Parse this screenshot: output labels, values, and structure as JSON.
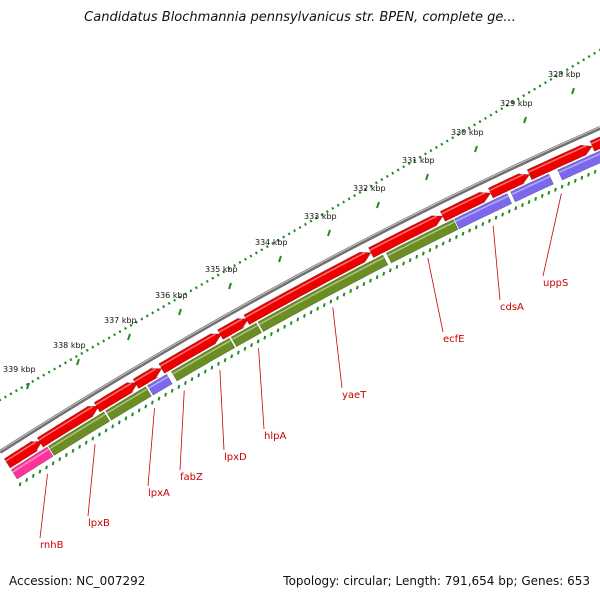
{
  "header": {
    "title": "Candidatus Blochmannia pennsylvanicus str. BPEN, complete ge..."
  },
  "footer": {
    "accession": "Accession: NC_007292",
    "stats": "Topology: circular; Length: 791,654 bp; Genes: 653"
  },
  "ruler": {
    "labels": [
      "328 kbp",
      "329 kbp",
      "330 kbp",
      "331 kbp",
      "332 kbp",
      "333 kbp",
      "334 kbp",
      "335 kbp",
      "336 kbp",
      "337 kbp",
      "338 kbp",
      "339 kbp"
    ]
  },
  "genes": [
    "uppS",
    "cdsA",
    "ecfE",
    "yaeT",
    "hlpA",
    "lpxD",
    "fabZ",
    "lpxA",
    "lpxB",
    "rnhB"
  ],
  "colors": {
    "backbone": "#7a7a7a",
    "cds": "#ee0000",
    "feature_green": "#6b8e23",
    "feature_purple": "#7b68ee",
    "feature_pink": "#ff3399",
    "ruler_tick": "#228b22",
    "label_text": "#cc0000"
  }
}
